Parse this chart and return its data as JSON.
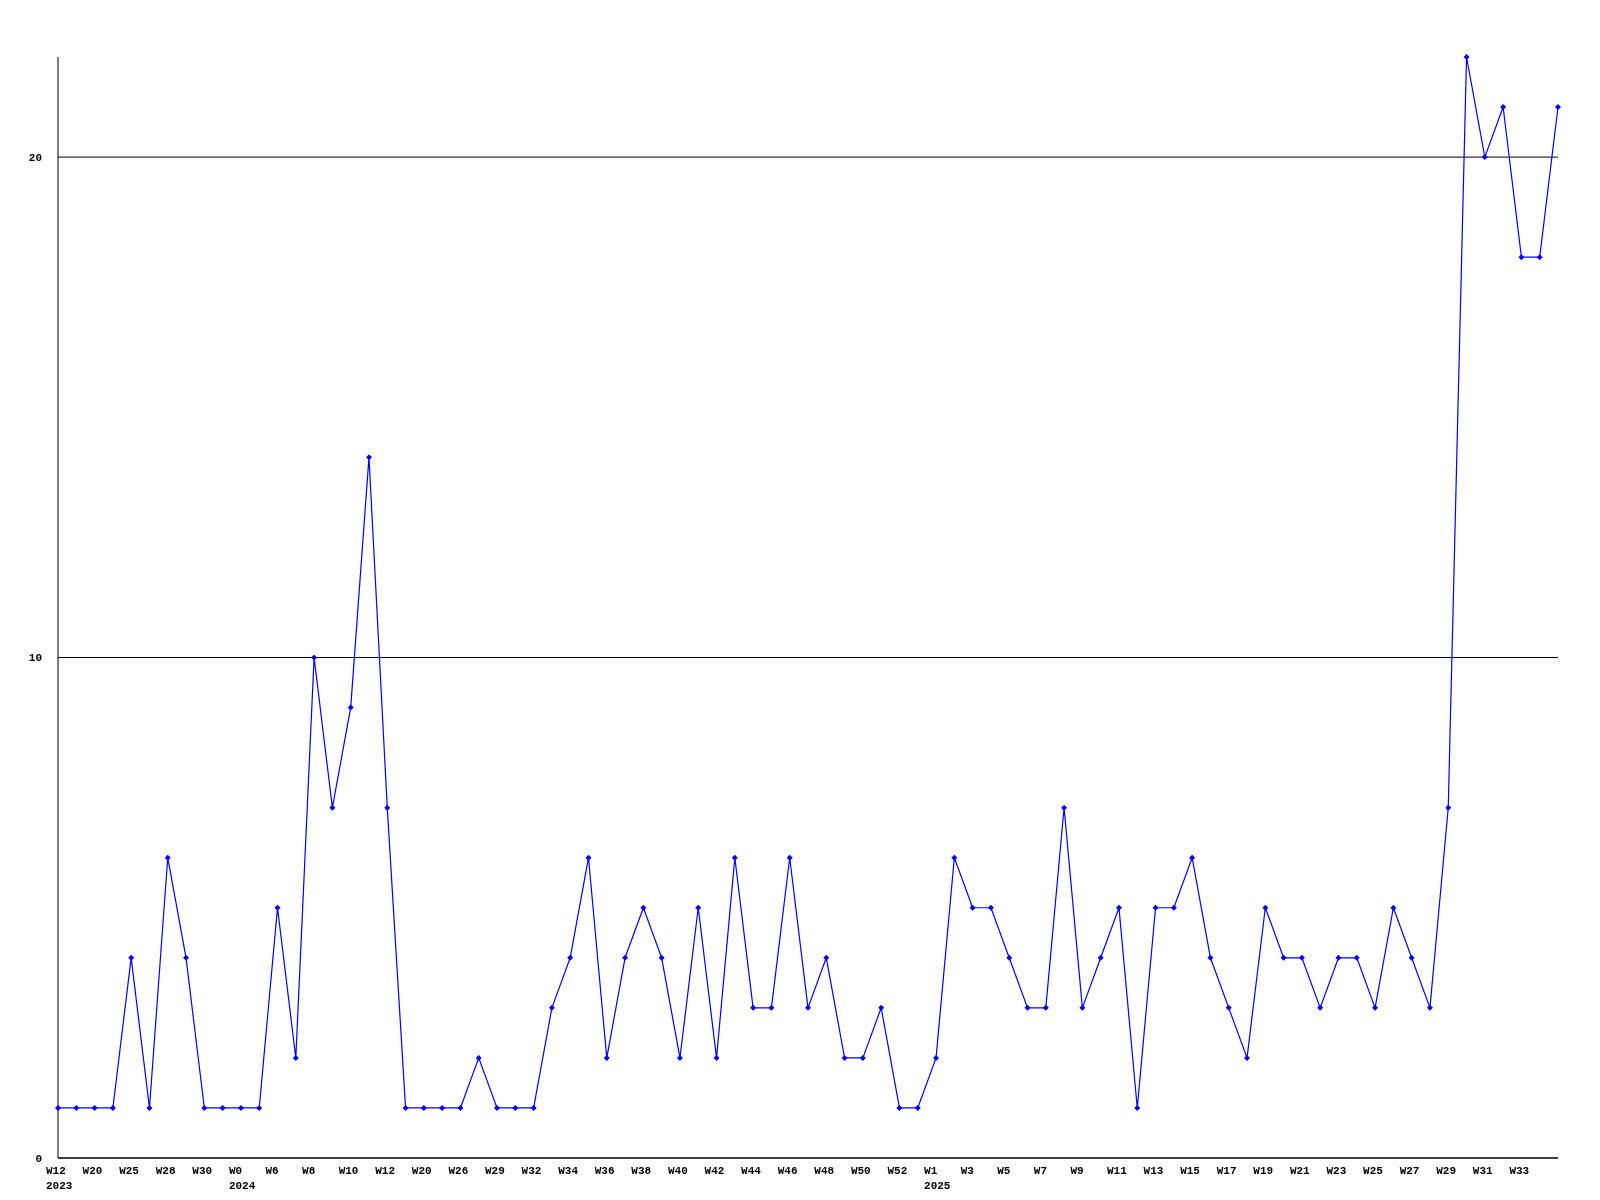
{
  "chart_data": {
    "type": "line",
    "categories": [
      "W12\n2023",
      null,
      "W20",
      null,
      "W25",
      null,
      "W28",
      null,
      "W30",
      null,
      "W0\n2024",
      null,
      "W6",
      null,
      "W8",
      null,
      "W10",
      null,
      "W12",
      null,
      "W20",
      null,
      "W26",
      null,
      "W29",
      null,
      "W32",
      null,
      "W34",
      null,
      "W36",
      null,
      "W38",
      null,
      "W40",
      null,
      "W42",
      null,
      "W44",
      null,
      "W46",
      null,
      "W48",
      null,
      "W50",
      null,
      "W52",
      null,
      "W1\n2025",
      null,
      "W3",
      null,
      "W5",
      null,
      "W7",
      null,
      "W9",
      null,
      "W11",
      null,
      "W13",
      null,
      "W15",
      null,
      "W17",
      null,
      "W19",
      null,
      "W21",
      null,
      "W23",
      null,
      "W25",
      null,
      "W27",
      null,
      "W29",
      null,
      "W31",
      null,
      "W33",
      null,
      null
    ],
    "series": [
      {
        "color": "#0000ff",
        "values": [
          1,
          1,
          1,
          1,
          4,
          1,
          6,
          4,
          1,
          1,
          1,
          1,
          5,
          2,
          10,
          7,
          9,
          14,
          7,
          1,
          1,
          1,
          1,
          2,
          1,
          1,
          1,
          3,
          4,
          6,
          2,
          4,
          5,
          4,
          2,
          5,
          2,
          6,
          3,
          3,
          6,
          3,
          4,
          2,
          2,
          3,
          1,
          1,
          2,
          6,
          5,
          5,
          4,
          3,
          3,
          7,
          3,
          4,
          5,
          1,
          5,
          5,
          6,
          4,
          3,
          2,
          5,
          4,
          4,
          3,
          4,
          4,
          3,
          5,
          4,
          3,
          7,
          22,
          20,
          21,
          18,
          18,
          21
        ]
      }
    ],
    "ylim": [
      0,
      22
    ],
    "yticks": [
      0,
      10,
      20
    ],
    "grid": "y",
    "marker": "diamond",
    "line_style": "solid"
  }
}
